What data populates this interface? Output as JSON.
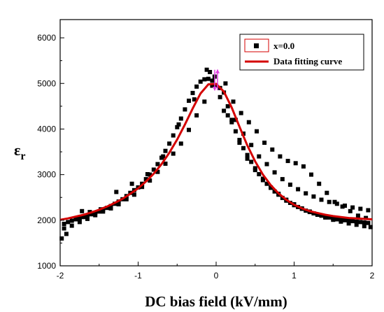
{
  "chart_data": {
    "type": "scatter",
    "xlabel": "DC bias field (kV/mm)",
    "ylabel_main": "ε",
    "ylabel_sub": "r",
    "xlim": [
      -2,
      2
    ],
    "ylim": [
      1000,
      6400
    ],
    "xticks": [
      -2,
      -1,
      0,
      1,
      2
    ],
    "yticks": [
      1000,
      2000,
      3000,
      4000,
      5000,
      6000
    ],
    "grid": false,
    "legend_position": "top-right",
    "colors": {
      "points": "#000000",
      "fit": "#d40000",
      "arrows": "#e040e0"
    },
    "series": [
      {
        "name": "x=0.0",
        "kind": "scatter",
        "marker": "square",
        "x": [
          -1.95,
          -1.9,
          -1.85,
          -1.8,
          -1.75,
          -1.7,
          -1.65,
          -1.6,
          -1.55,
          -1.5,
          -1.45,
          -1.4,
          -1.35,
          -1.3,
          -1.25,
          -1.2,
          -1.15,
          -1.1,
          -1.05,
          -1.0,
          -0.95,
          -0.9,
          -0.85,
          -0.8,
          -0.75,
          -0.7,
          -0.65,
          -0.6,
          -0.55,
          -0.5,
          -0.45,
          -0.4,
          -0.35,
          -0.3,
          -0.25,
          -0.2,
          -0.15,
          -0.1,
          -0.05,
          0.0,
          -1.95,
          -1.85,
          -1.75,
          -1.65,
          -1.55,
          -1.45,
          -1.35,
          -1.25,
          -1.15,
          -1.05,
          -0.95,
          -0.85,
          -0.75,
          -0.65,
          -0.55,
          -0.45,
          -0.35,
          -0.25,
          -0.15,
          -0.05,
          -1.98,
          -1.92,
          -1.72,
          -1.62,
          -1.48,
          -1.28,
          -1.08,
          -0.88,
          -0.68,
          -0.48,
          -0.28,
          -0.12,
          -0.08,
          -0.02,
          0.05,
          0.1,
          0.15,
          0.2,
          0.25,
          0.3,
          0.35,
          0.4,
          0.45,
          0.5,
          0.55,
          0.6,
          0.65,
          0.7,
          0.75,
          0.8,
          0.85,
          0.9,
          0.95,
          1.0,
          1.05,
          1.1,
          1.15,
          1.2,
          1.25,
          1.3,
          1.35,
          1.4,
          1.45,
          1.5,
          1.55,
          1.6,
          1.65,
          1.7,
          1.75,
          1.8,
          1.85,
          1.9,
          1.95,
          0.05,
          0.15,
          0.25,
          0.35,
          0.45,
          0.55,
          0.65,
          0.75,
          0.85,
          0.95,
          1.05,
          1.15,
          1.25,
          1.35,
          1.45,
          1.55,
          1.65,
          1.75,
          1.85,
          1.95,
          0.1,
          0.2,
          0.3,
          0.4,
          0.5,
          0.6,
          0.7,
          0.8,
          0.9,
          1.0,
          1.1,
          1.2,
          1.3,
          1.4,
          1.5,
          1.6,
          1.7,
          1.8,
          1.9,
          1.98,
          0.12,
          0.22,
          0.32,
          0.42,
          0.52,
          0.62,
          0.72,
          0.82,
          0.92,
          1.02,
          1.12,
          1.22,
          1.32,
          1.42,
          1.52,
          1.62,
          1.72,
          1.82,
          1.92
        ],
        "y": [
          1920,
          1960,
          1990,
          2020,
          2040,
          2070,
          2100,
          2130,
          2160,
          2190,
          2230,
          2270,
          2310,
          2360,
          2410,
          2460,
          2530,
          2600,
          2660,
          2720,
          2800,
          2900,
          3000,
          3110,
          3230,
          3370,
          3520,
          3680,
          3860,
          4040,
          4230,
          4430,
          4620,
          4790,
          4930,
          5040,
          5090,
          5100,
          5060,
          4950,
          1820,
          1880,
          1960,
          2030,
          2110,
          2190,
          2260,
          2350,
          2460,
          2560,
          2730,
          2870,
          3060,
          3240,
          3460,
          3680,
          3980,
          4300,
          4600,
          4950,
          1600,
          1700,
          2200,
          2180,
          2240,
          2620,
          2800,
          3010,
          3400,
          4100,
          4650,
          5300,
          5250,
          5150,
          4700,
          4400,
          4300,
          4200,
          3950,
          3760,
          3580,
          3430,
          3280,
          3140,
          3010,
          2910,
          2800,
          2710,
          2630,
          2560,
          2490,
          2430,
          2380,
          2330,
          2290,
          2250,
          2210,
          2180,
          2150,
          2120,
          2100,
          2080,
          2060,
          2040,
          2020,
          2010,
          2000,
          1990,
          1980,
          1970,
          1960,
          1950,
          1940,
          4900,
          4500,
          4200,
          3900,
          3650,
          3400,
          3230,
          3050,
          2900,
          2780,
          2680,
          2590,
          2520,
          2450,
          2400,
          2360,
          2320,
          2280,
          2250,
          2220,
          4800,
          4150,
          3700,
          3350,
          3100,
          2880,
          2720,
          2580,
          2450,
          2350,
          2260,
          2190,
          2120,
          2060,
          2010,
          1970,
          1930,
          1900,
          1870,
          1850,
          5000,
          4600,
          4350,
          4150,
          3950,
          3700,
          3550,
          3400,
          3300,
          3250,
          3180,
          3000,
          2800,
          2600,
          2400,
          2300,
          2200,
          2100,
          2050
        ]
      },
      {
        "name": "Data fitting curve",
        "kind": "line",
        "x": [
          -2.0,
          -1.9,
          -1.8,
          -1.7,
          -1.6,
          -1.5,
          -1.4,
          -1.3,
          -1.2,
          -1.1,
          -1.0,
          -0.9,
          -0.8,
          -0.7,
          -0.6,
          -0.5,
          -0.4,
          -0.3,
          -0.2,
          -0.1,
          0.0,
          0.1,
          0.2,
          0.3,
          0.4,
          0.5,
          0.6,
          0.7,
          0.8,
          0.9,
          1.0,
          1.1,
          1.2,
          1.3,
          1.4,
          1.5,
          1.6,
          1.7,
          1.8,
          1.9,
          2.0
        ],
        "y": [
          2010,
          2040,
          2080,
          2120,
          2170,
          2230,
          2300,
          2380,
          2470,
          2580,
          2700,
          2850,
          3020,
          3230,
          3480,
          3770,
          4100,
          4450,
          4780,
          4980,
          4990,
          4820,
          4470,
          4050,
          3640,
          3290,
          3000,
          2770,
          2590,
          2450,
          2340,
          2260,
          2200,
          2160,
          2120,
          2090,
          2070,
          2050,
          2040,
          2030,
          2020
        ]
      }
    ]
  }
}
